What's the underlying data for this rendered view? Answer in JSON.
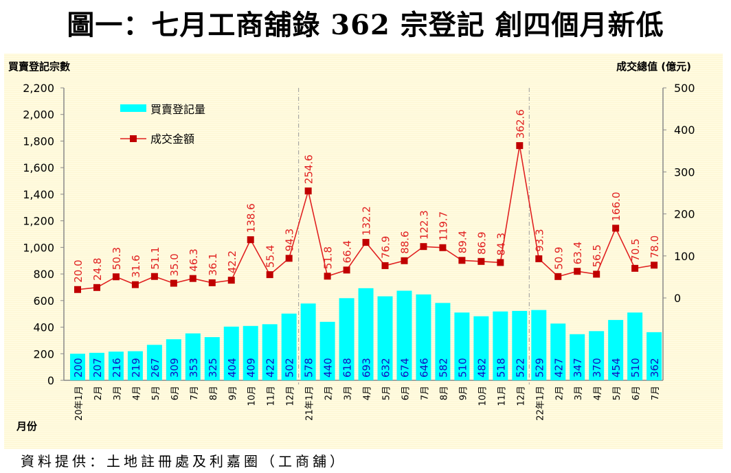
{
  "title": "圖一：七月工商舖錄 362 宗登記  創四個月新低",
  "source": "資料提供：土地註冊處及利嘉圈（工商舖）",
  "chart_data": {
    "type": "bar+line",
    "left_axis_label": "買賣登記宗數",
    "right_axis_label": "成交總值 (億元)",
    "xlabel": "月份",
    "left_ylim": [
      0,
      2200
    ],
    "left_ticks": [
      "0",
      "200",
      "400",
      "600",
      "800",
      "1,000",
      "1,200",
      "1,400",
      "1,600",
      "1,800",
      "2,000",
      "2,200"
    ],
    "right_ylim": [
      0,
      500
    ],
    "right_ticks": [
      "0",
      "100",
      "200",
      "300",
      "400",
      "500"
    ],
    "categories": [
      "20年1月",
      "2月",
      "3月",
      "4月",
      "5月",
      "6月",
      "7月",
      "8月",
      "9月",
      "10月",
      "11月",
      "12月",
      "21年1月",
      "2月",
      "3月",
      "4月",
      "5月",
      "6月",
      "7月",
      "8月",
      "9月",
      "10月",
      "11月",
      "12月",
      "22年1月",
      "2月",
      "3月",
      "4月",
      "5月",
      "6月",
      "7月"
    ],
    "series": [
      {
        "name": "買賣登記量",
        "type": "bar",
        "axis": "left",
        "color": "#00ffff",
        "values": [
          200,
          207,
          216,
          219,
          267,
          309,
          353,
          325,
          404,
          409,
          422,
          502,
          578,
          440,
          618,
          693,
          632,
          674,
          646,
          582,
          510,
          482,
          518,
          522,
          529,
          427,
          347,
          370,
          454,
          510,
          362
        ]
      },
      {
        "name": "成交金額",
        "type": "line",
        "axis": "right",
        "color": "#c00000",
        "values": [
          20.0,
          24.8,
          50.3,
          31.6,
          51.1,
          35.0,
          46.3,
          36.1,
          42.2,
          138.6,
          55.4,
          94.3,
          254.6,
          51.8,
          66.4,
          132.2,
          76.9,
          88.6,
          122.3,
          119.7,
          89.4,
          86.9,
          84.3,
          362.6,
          93.3,
          50.9,
          63.4,
          56.5,
          166.0,
          70.5,
          78.0
        ]
      }
    ],
    "legend": "top-left"
  }
}
